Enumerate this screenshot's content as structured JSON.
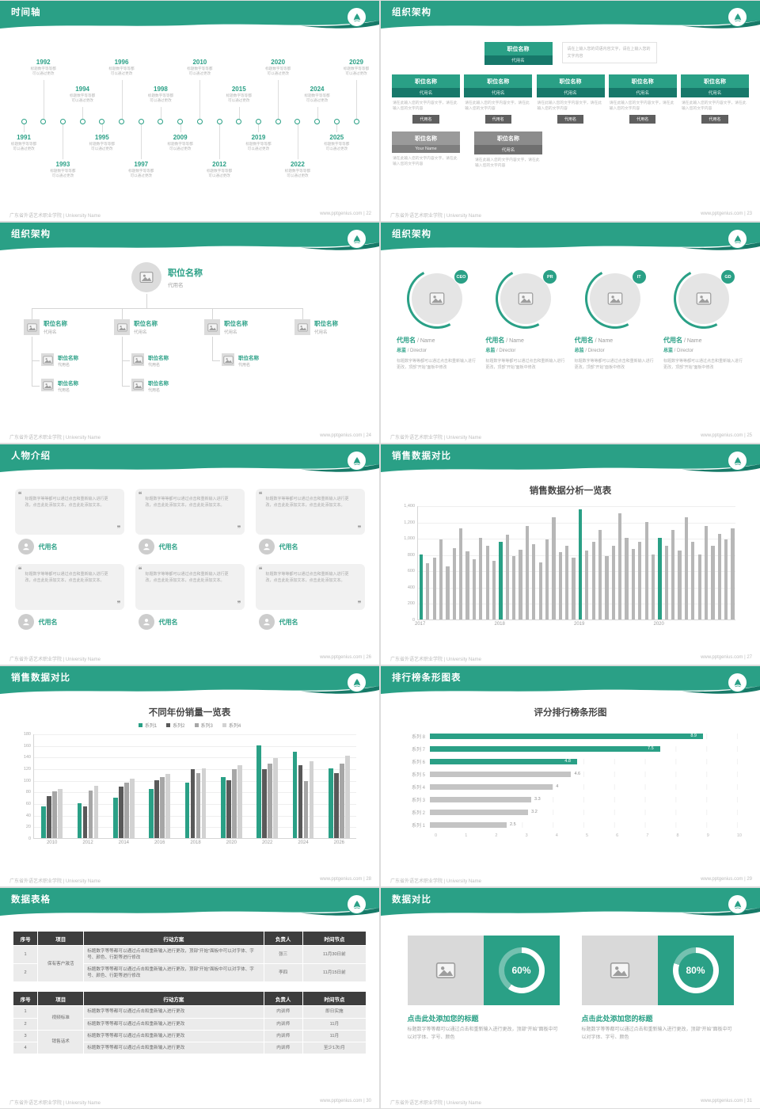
{
  "theme": {
    "primary": "#2aa086",
    "primary_dark": "#17786a",
    "bar_gray": "#b7b7b7",
    "table_header": "#3d3d3d"
  },
  "footer_left": "广东省外语艺术职业学院 | University Name",
  "site": "www.pptgenius.com",
  "slides": [
    {
      "title": "时间轴",
      "footer_right": "www.pptgenius.com | 22",
      "timeline": {
        "desc_line1": "标题数字等等都",
        "desc_line2": "可以通过更改",
        "items": [
          {
            "year": "1991",
            "side": "bottom",
            "level": 1
          },
          {
            "year": "1992",
            "side": "top",
            "level": 2
          },
          {
            "year": "1993",
            "side": "bottom",
            "level": 2
          },
          {
            "year": "1994",
            "side": "top",
            "level": 1
          },
          {
            "year": "1995",
            "side": "bottom",
            "level": 1
          },
          {
            "year": "1996",
            "side": "top",
            "level": 2
          },
          {
            "year": "1997",
            "side": "bottom",
            "level": 2
          },
          {
            "year": "1998",
            "side": "top",
            "level": 1
          },
          {
            "year": "2009",
            "side": "bottom",
            "level": 1
          },
          {
            "year": "2010",
            "side": "top",
            "level": 2
          },
          {
            "year": "2012",
            "side": "bottom",
            "level": 2
          },
          {
            "year": "2015",
            "side": "top",
            "level": 1
          },
          {
            "year": "2019",
            "side": "bottom",
            "level": 1
          },
          {
            "year": "2020",
            "side": "top",
            "level": 2
          },
          {
            "year": "2022",
            "side": "bottom",
            "level": 2
          },
          {
            "year": "2024",
            "side": "top",
            "level": 1
          },
          {
            "year": "2025",
            "side": "bottom",
            "level": 1
          },
          {
            "year": "2029",
            "side": "top",
            "level": 2
          }
        ]
      }
    },
    {
      "title": "组织架构",
      "footer_right": "www.pptgenius.com | 23",
      "org_boxes": {
        "root": {
          "title": "职位名称",
          "name": "代用名"
        },
        "root_note": "请在上输入您的词语内容文字，请在上输入您的文字内容",
        "columns": [
          {
            "title": "职位名称",
            "name": "代用名",
            "desc": "请在此输入您的文字内容文字，请在此输入您的文字内容",
            "tag": "代用名"
          },
          {
            "title": "职位名称",
            "name": "代用名",
            "desc": "请在此输入您的文字内容文字，请在此输入您的文字内容",
            "tag": "代用名"
          },
          {
            "title": "职位名称",
            "name": "代用名",
            "desc": "请在此输入您的文字内容文字，请在此输入您的文字内容",
            "tag": "代用名"
          },
          {
            "title": "职位名称",
            "name": "代用名",
            "desc": "请在此输入您的文字内容文字，请在此输入您的文字内容",
            "tag": "代用名"
          },
          {
            "title": "职位名称",
            "name": "代用名",
            "desc": "请在此输入您的文字内容文字，请在此输入您的文字内容",
            "tag": "代用名"
          }
        ],
        "bottom": [
          {
            "title": "职位名称",
            "name": "Your Name",
            "desc": "请在此输入您的文字内容文字，请在此输入您的文字内容"
          },
          {
            "title": "职位名称",
            "name": "代用名",
            "desc": "请在此输入您的文字内容文字，请在此输入您的文字内容"
          }
        ]
      }
    },
    {
      "title": "组织架构",
      "footer_right": "www.pptgenius.com | 24",
      "org_tree": {
        "root": {
          "title": "职位名称",
          "name": "代用名"
        },
        "managers": [
          {
            "title": "职位名称",
            "name": "代用名"
          },
          {
            "title": "职位名称",
            "name": "代用名"
          },
          {
            "title": "职位名称",
            "name": "代用名"
          },
          {
            "title": "职位名称",
            "name": "代用名"
          }
        ],
        "staff": [
          {
            "title": "职位名称",
            "name": "代用名"
          },
          {
            "title": "职位名称",
            "name": "代用名"
          },
          {
            "title": "职位名称",
            "name": "代用名"
          },
          {
            "title": "职位名称",
            "name": "代用名"
          },
          {
            "title": "职位名称",
            "name": "代用名"
          }
        ]
      }
    },
    {
      "title": "组织架构",
      "footer_right": "www.pptgenius.com | 25",
      "org_members": {
        "desc": "标题数字等等都可以通过点击和重新输入进行更改，顶部“开始”面板中修改",
        "members": [
          {
            "badge": "CEO",
            "name": "代用名",
            "name_suffix": "/ Name",
            "role": "总监",
            "role_suffix": "/ Director"
          },
          {
            "badge": "PR",
            "name": "代用名",
            "name_suffix": "/ Name",
            "role": "总监",
            "role_suffix": "/ Director"
          },
          {
            "badge": "IT",
            "name": "代用名",
            "name_suffix": "/ Name",
            "role": "总监",
            "role_suffix": "/ Director"
          },
          {
            "badge": "GD",
            "name": "代用名",
            "name_suffix": "/ Name",
            "role": "总监",
            "role_suffix": "/ Director"
          }
        ]
      }
    },
    {
      "title": "人物介绍",
      "footer_right": "www.pptgenius.com | 26",
      "people": {
        "quote": "标题数字等等都可以通过点击和重新输入进行更改，点击此处添加文本，点击此处添加文本。",
        "cards": [
          {
            "name": "代用名"
          },
          {
            "name": "代用名"
          },
          {
            "name": "代用名"
          },
          {
            "name": "代用名"
          },
          {
            "name": "代用名"
          },
          {
            "name": "代用名"
          }
        ]
      }
    },
    {
      "title": "销售数据对比",
      "footer_right": "www.pptgenius.com | 27"
    },
    {
      "title": "销售数据对比",
      "footer_right": "www.pptgenius.com | 28"
    },
    {
      "title": "排行榜条形图表",
      "footer_right": "www.pptgenius.com | 29"
    },
    {
      "title": "数据表格",
      "footer_right": "www.pptgenius.com | 30",
      "tables": [
        {
          "headers": [
            "序号",
            "项目",
            "行动方案",
            "负责人",
            "时间节点"
          ],
          "widths": [
            7,
            13,
            51,
            11,
            18
          ],
          "rows": [
            [
              {
                "t": "1"
              },
              {
                "t": "保有客户激活",
                "rs": 2
              },
              {
                "t": "标题数字等等都可以通过点击和重新输入进行更改，顶部“开始”面板中可以对字体、字号、颜色、行距等进行修改"
              },
              {
                "t": "张三"
              },
              {
                "t": "11月30日前"
              }
            ],
            [
              {
                "t": "2"
              },
              {
                "t": "标题数字等等都可以通过点击和重新输入进行更改，顶部“开始”面板中可以对字体、字号、颜色、行距等进行修改"
              },
              {
                "t": "李四"
              },
              {
                "t": "11月15日前"
              }
            ]
          ]
        },
        {
          "headers": [
            "序号",
            "项目",
            "行动方案",
            "负责人",
            "时间节点"
          ],
          "widths": [
            7,
            13,
            51,
            11,
            18
          ],
          "rows": [
            [
              {
                "t": "1"
              },
              {
                "t": "视频标准",
                "rs": 2
              },
              {
                "t": "标题数字等等都可以通过点击和重新输入进行更改"
              },
              {
                "t": "内训师"
              },
              {
                "t": "即日实施"
              }
            ],
            [
              {
                "t": "2"
              },
              {
                "t": "标题数字等等都可以通过点击和重新输入进行更改"
              },
              {
                "t": "内训师"
              },
              {
                "t": "11月"
              }
            ],
            [
              {
                "t": "3"
              },
              {
                "t": "销售话术",
                "rs": 2
              },
              {
                "t": "标题数字等等都可以通过点击和重新输入进行更改"
              },
              {
                "t": "内训师"
              },
              {
                "t": "11月"
              }
            ],
            [
              {
                "t": "4"
              },
              {
                "t": "标题数字等等都可以通过点击和重新输入进行更改"
              },
              {
                "t": "内训师"
              },
              {
                "t": "至少1次/月"
              }
            ]
          ]
        }
      ]
    },
    {
      "title": "数据对比",
      "footer_right": "www.pptgenius.com | 31",
      "compare": {
        "items": [
          {
            "percent": 60,
            "label": "60%",
            "title": "点击此处添加您的标题",
            "desc": "标题数字等等都可以通过点击和重新输入进行更改，顶部“开始”面板中可以对字体、字号、颜色"
          },
          {
            "percent": 80,
            "label": "80%",
            "title": "点击此处添加您的标题",
            "desc": "标题数字等等都可以通过点击和重新输入进行更改，顶部“开始”面板中可以对字体、字号、颜色"
          }
        ]
      }
    }
  ],
  "chart_data": [
    {
      "type": "bar",
      "title": "销售数据分析一览表",
      "x_groups": [
        "2017",
        "2018",
        "2019",
        "2020"
      ],
      "group_size": 12,
      "ylim": [
        0,
        1400
      ],
      "yticks": [
        0,
        200,
        400,
        600,
        800,
        1000,
        1200,
        1400
      ],
      "ytick_labels": [
        "0",
        "200",
        "400",
        "600",
        "800",
        "1,000",
        "1,200",
        "1,400"
      ],
      "bar_color": "#b7b7b7",
      "highlight_color": "#2aa086",
      "highlight_indices": [
        0,
        12,
        24,
        36
      ],
      "values": [
        800,
        690,
        760,
        980,
        650,
        880,
        1120,
        840,
        740,
        1000,
        900,
        720,
        950,
        1040,
        780,
        860,
        1150,
        920,
        700,
        980,
        1250,
        830,
        900,
        760,
        1350,
        850,
        950,
        1100,
        780,
        900,
        1300,
        1000,
        870,
        950,
        1200,
        800,
        1000,
        900,
        1100,
        850,
        1250,
        950,
        800,
        1150,
        900,
        1050,
        980,
        1120
      ]
    },
    {
      "type": "bar",
      "title": "不同年份销量一览表",
      "categories": [
        "2010",
        "2012",
        "2014",
        "2016",
        "2018",
        "2020",
        "2022",
        "2024",
        "2026"
      ],
      "ylim": [
        0,
        180
      ],
      "yticks": [
        0,
        20,
        40,
        60,
        80,
        100,
        120,
        140,
        160,
        180
      ],
      "series": [
        {
          "name": "系列1",
          "color": "#2aa086",
          "values": [
            55,
            60,
            70,
            85,
            95,
            105,
            160,
            148,
            120
          ]
        },
        {
          "name": "系列2",
          "color": "#595959",
          "values": [
            72,
            55,
            88,
            100,
            118,
            100,
            118,
            125,
            112
          ]
        },
        {
          "name": "系列3",
          "color": "#a6a6a6",
          "values": [
            80,
            82,
            95,
            105,
            112,
            118,
            128,
            98,
            128
          ]
        },
        {
          "name": "系列4",
          "color": "#d2d2d2",
          "values": [
            85,
            90,
            102,
            110,
            120,
            126,
            138,
            132,
            142
          ]
        }
      ]
    },
    {
      "type": "hbar",
      "title": "评分排行榜条形图",
      "categories": [
        "系列 8",
        "系列 7",
        "系列 6",
        "系列 5",
        "系列 4",
        "系列 3",
        "系列 2",
        "系列 1"
      ],
      "values": [
        8.9,
        7.5,
        4.8,
        4.6,
        4,
        3.3,
        3.2,
        2.5
      ],
      "value_labels": [
        "8.9",
        "7.5",
        "4.8",
        "4.6",
        "4",
        "3.3",
        "3.2",
        "2.5"
      ],
      "bar_colors": [
        "#2aa086",
        "#2aa086",
        "#2aa086",
        "#c4c4c4",
        "#c4c4c4",
        "#c4c4c4",
        "#c4c4c4",
        "#c4c4c4"
      ],
      "xlim": [
        0,
        10
      ],
      "xticks": [
        "0",
        "1",
        "2",
        "3",
        "4",
        "5",
        "6",
        "7",
        "8",
        "9",
        "10"
      ]
    }
  ]
}
